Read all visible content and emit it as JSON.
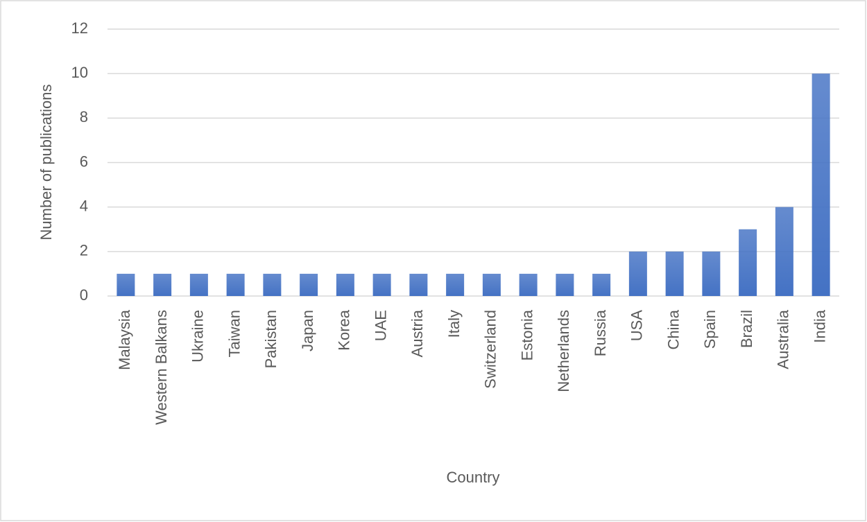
{
  "chart_data": {
    "type": "bar",
    "x_label": "Country",
    "y_label": "Number of publications",
    "categories": [
      "Malaysia",
      "Western Balkans",
      "Ukraine",
      "Taiwan",
      "Pakistan",
      "Japan",
      "Korea",
      "UAE",
      "Austria",
      "Italy",
      "Switzerland",
      "Estonia",
      "Netherlands",
      "Russia",
      "USA",
      "China",
      "Spain",
      "Brazil",
      "Australia",
      "India"
    ],
    "values": [
      1,
      1,
      1,
      1,
      1,
      1,
      1,
      1,
      1,
      1,
      1,
      1,
      1,
      1,
      2,
      2,
      2,
      3,
      4,
      10
    ],
    "color": "#4472c4",
    "ylim": [
      0,
      12
    ],
    "yticks": [
      0,
      2,
      4,
      6,
      8,
      10,
      12
    ],
    "grid": true
  }
}
